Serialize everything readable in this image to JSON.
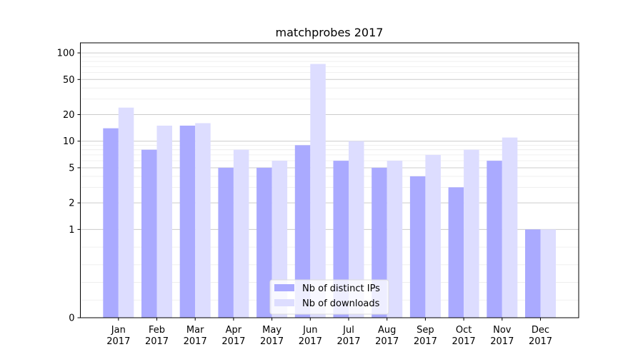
{
  "chart_data": {
    "type": "bar",
    "title": "matchprobes 2017",
    "xlabel": "",
    "ylabel": "",
    "yscale": "symlog",
    "ylim": [
      0,
      130
    ],
    "yticks": [
      0,
      1,
      2,
      5,
      10,
      20,
      50,
      100
    ],
    "ytick_labels": [
      "0",
      "1",
      "2",
      "5",
      "10",
      "20",
      "50",
      "100"
    ],
    "grid": "horizontal",
    "legend_position": "bottom-center",
    "categories": [
      {
        "month": "Jan",
        "year": "2017"
      },
      {
        "month": "Feb",
        "year": "2017"
      },
      {
        "month": "Mar",
        "year": "2017"
      },
      {
        "month": "Apr",
        "year": "2017"
      },
      {
        "month": "May",
        "year": "2017"
      },
      {
        "month": "Jun",
        "year": "2017"
      },
      {
        "month": "Jul",
        "year": "2017"
      },
      {
        "month": "Aug",
        "year": "2017"
      },
      {
        "month": "Sep",
        "year": "2017"
      },
      {
        "month": "Oct",
        "year": "2017"
      },
      {
        "month": "Nov",
        "year": "2017"
      },
      {
        "month": "Dec",
        "year": "2017"
      }
    ],
    "series": [
      {
        "name": "Nb of distinct IPs",
        "color": "#aaaaff",
        "values": [
          14,
          8,
          15,
          5,
          5,
          9,
          6,
          5,
          4,
          3,
          6,
          1
        ]
      },
      {
        "name": "Nb of downloads",
        "color": "#ddddff",
        "values": [
          24,
          15,
          16,
          8,
          6,
          75,
          10,
          6,
          7,
          8,
          11,
          1
        ]
      }
    ]
  }
}
